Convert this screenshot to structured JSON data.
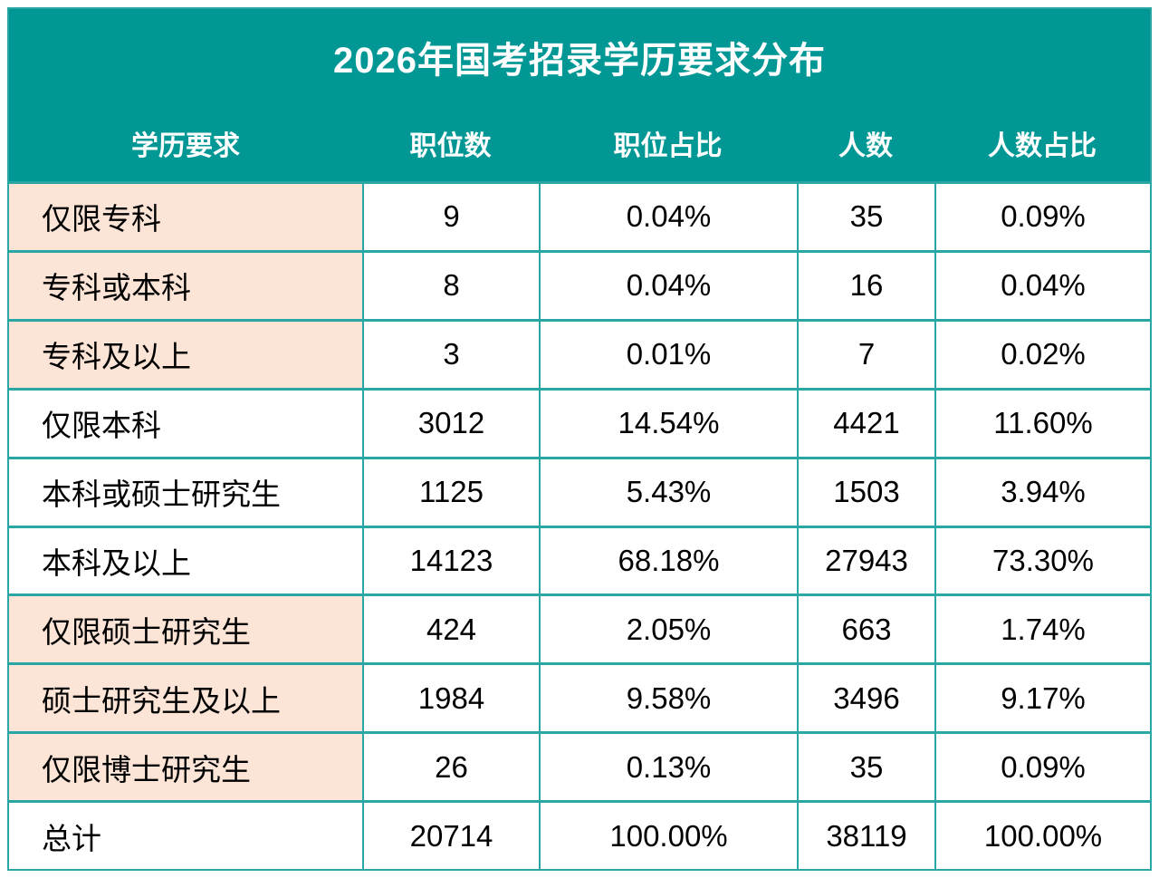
{
  "title": "2026年国考招录学历要求分布",
  "colors": {
    "header_teal": "#009795",
    "grid_border_teal": "#2aa7a5",
    "label_highlight_peach": "#fce4d6",
    "cell_background": "#ffffff",
    "header_text": "#ffffff",
    "body_text": "#000000"
  },
  "table": {
    "headers": [
      "学历要求",
      "职位数",
      "职位占比",
      "人数",
      "人数占比"
    ],
    "rows": [
      {
        "highlighted": true,
        "cells": [
          "仅限专科",
          "9",
          "0.04%",
          "35",
          "0.09%"
        ]
      },
      {
        "highlighted": true,
        "cells": [
          "专科或本科",
          "8",
          "0.04%",
          "16",
          "0.04%"
        ]
      },
      {
        "highlighted": true,
        "cells": [
          "专科及以上",
          "3",
          "0.01%",
          "7",
          "0.02%"
        ]
      },
      {
        "highlighted": false,
        "cells": [
          "仅限本科",
          "3012",
          "14.54%",
          "4421",
          "11.60%"
        ]
      },
      {
        "highlighted": false,
        "cells": [
          "本科或硕士研究生",
          "1125",
          "5.43%",
          "1503",
          "3.94%"
        ]
      },
      {
        "highlighted": false,
        "cells": [
          "本科及以上",
          "14123",
          "68.18%",
          "27943",
          "73.30%"
        ]
      },
      {
        "highlighted": true,
        "cells": [
          "仅限硕士研究生",
          "424",
          "2.05%",
          "663",
          "1.74%"
        ]
      },
      {
        "highlighted": true,
        "cells": [
          "硕士研究生及以上",
          "1984",
          "9.58%",
          "3496",
          "9.17%"
        ]
      },
      {
        "highlighted": true,
        "cells": [
          "仅限博士研究生",
          "26",
          "0.13%",
          "35",
          "0.09%"
        ]
      },
      {
        "highlighted": false,
        "cells": [
          "总计",
          "20714",
          "100.00%",
          "38119",
          "100.00%"
        ]
      }
    ]
  },
  "chart_data": {
    "type": "table",
    "title": "2026年国考招录学历要求分布",
    "columns": [
      "学历要求",
      "职位数",
      "职位占比",
      "人数",
      "人数占比"
    ],
    "rows": [
      [
        "仅限专科",
        9,
        "0.04%",
        35,
        "0.09%"
      ],
      [
        "专科或本科",
        8,
        "0.04%",
        16,
        "0.04%"
      ],
      [
        "专科及以上",
        3,
        "0.01%",
        7,
        "0.02%"
      ],
      [
        "仅限本科",
        3012,
        "14.54%",
        4421,
        "11.60%"
      ],
      [
        "本科或硕士研究生",
        1125,
        "5.43%",
        1503,
        "3.94%"
      ],
      [
        "本科及以上",
        14123,
        "68.18%",
        27943,
        "73.30%"
      ],
      [
        "仅限硕士研究生",
        424,
        "2.05%",
        663,
        "1.74%"
      ],
      [
        "硕士研究生及以上",
        1984,
        "9.58%",
        3496,
        "9.17%"
      ],
      [
        "仅限博士研究生",
        26,
        "0.13%",
        35,
        "0.09%"
      ],
      [
        "总计",
        20714,
        "100.00%",
        38119,
        "100.00%"
      ]
    ],
    "totals_row": [
      "总计",
      20714,
      "100.00%",
      38119,
      "100.00%"
    ],
    "layout": {
      "grid": true,
      "header_fill": "#009795",
      "highlight_fill": "#fce4d6"
    }
  }
}
